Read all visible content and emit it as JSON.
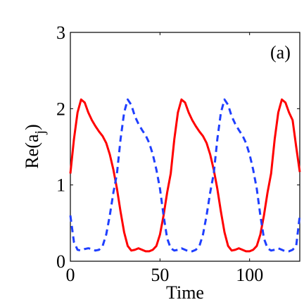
{
  "chart_data": {
    "type": "line",
    "panel_label": "(a)",
    "xlabel": "Time",
    "ylabel_main": "Re(a",
    "ylabel_sub": "j",
    "ylabel_close": ")",
    "xlim": [
      0,
      128
    ],
    "ylim": [
      0,
      3
    ],
    "xticks": [
      0,
      50,
      100
    ],
    "yticks": [
      0,
      1,
      2,
      3
    ],
    "xtick_labels": [
      "0",
      "50",
      "100"
    ],
    "ytick_labels": [
      "0",
      "1",
      "2",
      "3"
    ],
    "grid": false,
    "series": [
      {
        "color": "#ff0000",
        "style": "solid",
        "x": [
          0,
          2,
          4,
          6,
          8,
          10,
          12,
          14,
          16,
          18,
          20,
          22,
          24,
          26,
          28,
          30,
          32,
          34,
          36,
          38,
          40,
          42,
          44,
          46,
          48,
          50,
          52,
          54,
          56,
          58,
          60,
          62,
          64,
          66,
          68,
          70,
          72,
          74,
          76,
          78,
          80,
          82,
          84,
          86,
          88,
          90,
          92,
          94,
          96,
          98,
          100,
          102,
          104,
          106,
          108,
          110,
          112,
          114,
          116,
          118,
          120,
          122,
          124,
          126,
          128
        ],
        "y": [
          1.15,
          1.6,
          1.95,
          2.12,
          2.08,
          1.95,
          1.85,
          1.77,
          1.7,
          1.64,
          1.55,
          1.4,
          1.2,
          0.95,
          0.65,
          0.38,
          0.2,
          0.14,
          0.15,
          0.17,
          0.15,
          0.13,
          0.13,
          0.15,
          0.2,
          0.35,
          0.6,
          0.9,
          1.15,
          1.6,
          1.95,
          2.12,
          2.08,
          1.95,
          1.85,
          1.77,
          1.7,
          1.64,
          1.55,
          1.4,
          1.2,
          0.95,
          0.65,
          0.38,
          0.2,
          0.14,
          0.15,
          0.17,
          0.15,
          0.13,
          0.13,
          0.15,
          0.2,
          0.35,
          0.6,
          0.9,
          1.15,
          1.6,
          1.95,
          2.12,
          2.08,
          1.95,
          1.85,
          1.5,
          1.17
        ]
      },
      {
        "color": "#1f3fff",
        "style": "dashed",
        "x": [
          0,
          2,
          4,
          6,
          8,
          10,
          12,
          14,
          16,
          18,
          20,
          22,
          24,
          26,
          28,
          30,
          32,
          34,
          36,
          38,
          40,
          42,
          44,
          46,
          48,
          50,
          52,
          54,
          56,
          58,
          60,
          62,
          64,
          66,
          68,
          70,
          72,
          74,
          76,
          78,
          80,
          82,
          84,
          86,
          88,
          90,
          92,
          94,
          96,
          98,
          100,
          102,
          104,
          106,
          108,
          110,
          112,
          114,
          116,
          118,
          120,
          122,
          124,
          126,
          128
        ],
        "y": [
          0.6,
          0.25,
          0.15,
          0.14,
          0.16,
          0.17,
          0.16,
          0.14,
          0.15,
          0.2,
          0.35,
          0.6,
          0.9,
          1.15,
          1.6,
          1.95,
          2.12,
          2.05,
          1.9,
          1.8,
          1.72,
          1.65,
          1.55,
          1.4,
          1.2,
          0.95,
          0.6,
          0.3,
          0.17,
          0.14,
          0.15,
          0.17,
          0.15,
          0.13,
          0.13,
          0.15,
          0.2,
          0.35,
          0.6,
          0.9,
          1.15,
          1.6,
          1.95,
          2.12,
          2.05,
          1.9,
          1.8,
          1.72,
          1.65,
          1.55,
          1.4,
          1.2,
          0.95,
          0.6,
          0.3,
          0.17,
          0.14,
          0.15,
          0.17,
          0.15,
          0.13,
          0.13,
          0.15,
          0.2,
          0.6
        ]
      }
    ]
  }
}
